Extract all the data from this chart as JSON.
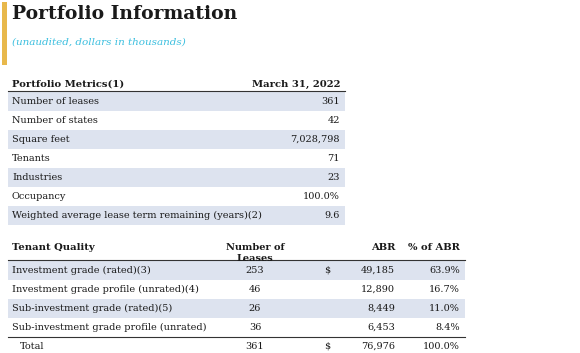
{
  "title": "Portfolio Information",
  "subtitle": "(unaudited, dollars in thousands)",
  "title_color": "#1a1a1a",
  "subtitle_color": "#3bbfdf",
  "accent_color": "#e8b84b",
  "bg_color": "#ffffff",
  "row_bg_shaded": "#dde3ef",
  "row_bg_white": "#ffffff",
  "metrics_header_col1": "Portfolio Metrics(1)",
  "metrics_header_col2": "March 31, 2022",
  "metrics_rows": [
    [
      "Number of leases",
      "361"
    ],
    [
      "Number of states",
      "42"
    ],
    [
      "Square feet",
      "7,028,798"
    ],
    [
      "Tenants",
      "71"
    ],
    [
      "Industries",
      "23"
    ],
    [
      "Occupancy",
      "100.0%"
    ],
    [
      "Weighted average lease term remaining (years)(2)",
      "9.6"
    ]
  ],
  "metrics_shaded": [
    true,
    false,
    true,
    false,
    true,
    false,
    true
  ],
  "quality_header_col1": "Tenant Quality",
  "quality_header_leases": "Number of\nLeases",
  "quality_header_abr": "ABR",
  "quality_header_pct": "% of ABR",
  "quality_rows": [
    [
      "Investment grade (rated)(3)",
      "253",
      "$",
      "49,185",
      "63.9%"
    ],
    [
      "Investment grade profile (unrated)(4)",
      "46",
      "",
      "12,890",
      "16.7%"
    ],
    [
      "Sub-investment grade (rated)(5)",
      "26",
      "",
      "8,449",
      "11.0%"
    ],
    [
      "Sub-investment grade profile (unrated)",
      "36",
      "",
      "6,453",
      "8.4%"
    ],
    [
      "Total",
      "361",
      "$",
      "76,976",
      "100.0%"
    ]
  ],
  "quality_shaded": [
    true,
    false,
    true,
    false,
    false
  ]
}
